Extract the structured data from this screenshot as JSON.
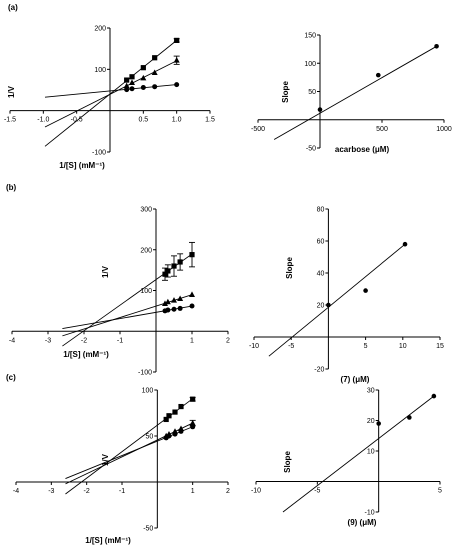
{
  "chart_data": [
    {
      "type": "line",
      "panel": "(a)",
      "plot": "lineweaver-burk",
      "xlabel": "1/[S] (mM⁻¹)",
      "ylabel": "1/V",
      "xlim": [
        -1.5,
        1.5
      ],
      "ylim": [
        -100,
        200
      ],
      "xticks": [
        -1.5,
        -1.0,
        -0.5,
        0.5,
        1.0,
        1.5
      ],
      "yticks": [
        -100,
        100,
        200
      ],
      "series": [
        {
          "marker": "square",
          "x": [
            0.25,
            0.33,
            0.5,
            0.67,
            1.0
          ],
          "y": [
            74,
            82,
            104,
            128,
            170
          ],
          "err": [
            0,
            0,
            0,
            0,
            4
          ]
        },
        {
          "marker": "triangle",
          "x": [
            0.25,
            0.33,
            0.5,
            0.67,
            1.0
          ],
          "y": [
            60,
            68,
            79,
            92,
            122
          ],
          "err": [
            0,
            0,
            0,
            0,
            10
          ]
        },
        {
          "marker": "circle",
          "x": [
            0.25,
            0.33,
            0.5,
            0.67,
            1.0
          ],
          "y": [
            51,
            53,
            56,
            58,
            63
          ],
          "err": [
            0,
            0,
            0,
            0,
            0
          ]
        }
      ]
    },
    {
      "type": "scatter",
      "panel": "(a)",
      "plot": "secondary",
      "xlabel": "acarbose (μM)",
      "ylabel": "Slope",
      "xlim": [
        -500,
        1000
      ],
      "ylim": [
        -50,
        150
      ],
      "xticks": [
        -500,
        500,
        1000
      ],
      "yticks": [
        -50,
        50,
        100,
        150
      ],
      "x": [
        0,
        470,
        940
      ],
      "y": [
        18,
        79,
        130
      ],
      "fit": {
        "x": [
          -370,
          940
        ],
        "y": [
          -35,
          130
        ]
      }
    },
    {
      "type": "line",
      "panel": "(b)",
      "plot": "lineweaver-burk",
      "xlabel": "1/[S] (mM⁻¹)",
      "ylabel": "1/V",
      "xlim": [
        -4,
        2
      ],
      "ylim": [
        -100,
        300
      ],
      "xticks": [
        -4,
        -3,
        -2,
        -1,
        1,
        2
      ],
      "yticks": [
        -100,
        100,
        200,
        300
      ],
      "series": [
        {
          "marker": "square",
          "x": [
            0.25,
            0.33,
            0.5,
            0.67,
            1.0
          ],
          "y": [
            140,
            148,
            160,
            170,
            188
          ],
          "err": [
            15,
            15,
            25,
            20,
            30
          ]
        },
        {
          "marker": "triangle",
          "x": [
            0.25,
            0.33,
            0.5,
            0.67,
            1.0
          ],
          "y": [
            68,
            72,
            76,
            80,
            90
          ],
          "err": [
            0,
            0,
            0,
            0,
            0
          ]
        },
        {
          "marker": "circle",
          "x": [
            0.25,
            0.33,
            0.5,
            0.67,
            1.0
          ],
          "y": [
            50,
            52,
            54,
            56,
            62
          ],
          "err": [
            0,
            0,
            0,
            0,
            0
          ]
        }
      ]
    },
    {
      "type": "scatter",
      "panel": "(b)",
      "plot": "secondary",
      "xlabel": "(7) (μM)",
      "ylabel": "Slope",
      "xlim": [
        -10,
        15
      ],
      "ylim": [
        -20,
        80
      ],
      "xticks": [
        -10,
        -5,
        5,
        10,
        15
      ],
      "yticks": [
        -20,
        20,
        40,
        60,
        80
      ],
      "x": [
        0,
        5,
        10.3
      ],
      "y": [
        20,
        29,
        58
      ],
      "fit": {
        "x": [
          -8,
          10.3
        ],
        "y": [
          -12,
          58
        ]
      }
    },
    {
      "type": "line",
      "panel": "(c)",
      "plot": "lineweaver-burk",
      "xlabel": "1/[S] (mM⁻¹)",
      "ylabel": "1/V",
      "xlim": [
        -4,
        2
      ],
      "ylim": [
        -50,
        100
      ],
      "xticks": [
        -4,
        -3,
        -2,
        -1,
        1,
        2
      ],
      "yticks": [
        -50,
        50,
        100
      ],
      "series": [
        {
          "marker": "square",
          "x": [
            0.25,
            0.33,
            0.5,
            0.67,
            1.0
          ],
          "y": [
            68,
            72,
            76,
            82,
            90
          ],
          "err": [
            0,
            0,
            0,
            0,
            2
          ]
        },
        {
          "marker": "triangle",
          "x": [
            0.25,
            0.33,
            0.5,
            0.67,
            1.0
          ],
          "y": [
            50,
            52,
            55,
            58,
            64
          ],
          "err": [
            0,
            0,
            0,
            0,
            3
          ]
        },
        {
          "marker": "circle",
          "x": [
            0.25,
            0.33,
            0.5,
            0.67,
            1.0
          ],
          "y": [
            48,
            50,
            52,
            55,
            60
          ],
          "err": [
            0,
            0,
            0,
            0,
            0
          ]
        }
      ]
    },
    {
      "type": "scatter",
      "panel": "(c)",
      "plot": "secondary",
      "xlabel": "(9) (μM)",
      "ylabel": "Slope",
      "xlim": [
        -10,
        5
      ],
      "ylim": [
        -10,
        30
      ],
      "xticks": [
        -10,
        -5,
        5
      ],
      "yticks": [
        -10,
        10,
        20,
        30
      ],
      "x": [
        0,
        2.5,
        4.5
      ],
      "y": [
        19,
        21,
        28
      ],
      "fit": {
        "x": [
          -7.8,
          4.5
        ],
        "y": [
          -10,
          28
        ]
      }
    }
  ]
}
